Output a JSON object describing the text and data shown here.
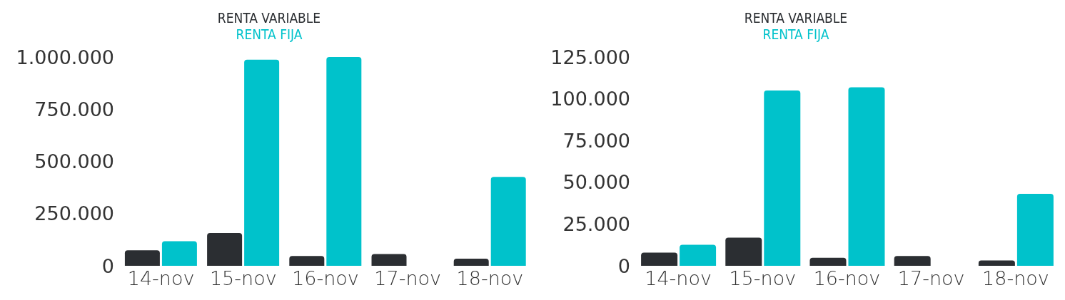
{
  "chart_data": [
    {
      "type": "bar",
      "categories": [
        "14-nov",
        "15-nov",
        "16-nov",
        "17-nov",
        "18-nov"
      ],
      "series": [
        {
          "name": "RENTA VARIABLE",
          "color": "#2b2e32",
          "values": [
            74000,
            157000,
            47000,
            56000,
            34000
          ]
        },
        {
          "name": "RENTA FIJA",
          "color": "#00c2cb",
          "values": [
            118000,
            987000,
            1000000,
            null,
            426000
          ]
        }
      ],
      "ylim": [
        0,
        1000000
      ],
      "yticks": [
        0,
        {
          "value": 250000,
          "label": "250.000"
        },
        {
          "value": 500000,
          "label": "500.000"
        },
        {
          "value": 750000,
          "label": "750.000"
        },
        {
          "value": 1000000,
          "label": "1.000.000"
        }
      ],
      "grid": false,
      "legend": "top"
    },
    {
      "type": "bar",
      "categories": [
        "14-nov",
        "15-nov",
        "16-nov",
        "17-nov",
        "18-nov"
      ],
      "series": [
        {
          "name": "RENTA VARIABLE",
          "color": "#2b2e32",
          "values": [
            7900,
            16900,
            4800,
            5900,
            3200
          ]
        },
        {
          "name": "RENTA FIJA",
          "color": "#00c2cb",
          "values": [
            12600,
            105000,
            106900,
            null,
            43100
          ]
        }
      ],
      "ylim": [
        0,
        125000
      ],
      "yticks": [
        0,
        {
          "value": 25000,
          "label": "25.000"
        },
        {
          "value": 50000,
          "label": "50.000"
        },
        {
          "value": 75000,
          "label": "75.000"
        },
        {
          "value": 100000,
          "label": "100.000"
        },
        {
          "value": 125000,
          "label": "125.000"
        }
      ],
      "grid": false,
      "legend": "top"
    }
  ]
}
